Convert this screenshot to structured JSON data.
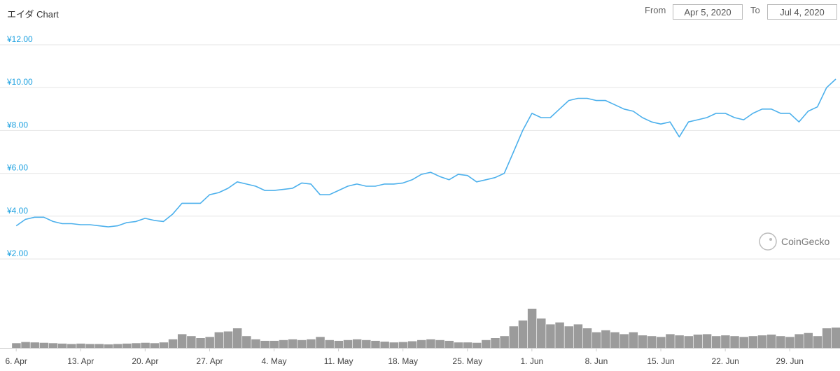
{
  "header": {
    "title": "エイダ Chart",
    "from_label": "From",
    "from_value": "Apr 5, 2020",
    "to_label": "To",
    "to_value": "Jul 4, 2020"
  },
  "watermark": {
    "text": "CoinGecko",
    "icon": "coingecko-gecko-icon"
  },
  "colors": {
    "price_line": "#4cb0ec",
    "axis_label": "#1ea1e0",
    "volume": "#8a8a8a",
    "grid": "#e6e6e6"
  },
  "chart_data": [
    {
      "type": "line",
      "title": "エイダ Chart",
      "yunit": "¥",
      "y_ticks": [
        "¥2.00",
        "¥4.00",
        "¥6.00",
        "¥8.00",
        "¥10.00",
        "¥12.00"
      ],
      "ylim": [
        2,
        12
      ],
      "x_ticks": [
        "6. Apr",
        "13. Apr",
        "20. Apr",
        "27. Apr",
        "4. May",
        "11. May",
        "18. May",
        "25. May",
        "1. Jun",
        "8. Jun",
        "15. Jun",
        "22. Jun",
        "29. Jun"
      ],
      "x_range": [
        "2020-04-05",
        "2020-07-04"
      ],
      "grid": true,
      "series": [
        {
          "x": [
            "2020-04-06",
            "2020-04-07",
            "2020-04-08",
            "2020-04-09",
            "2020-04-10",
            "2020-04-11",
            "2020-04-12",
            "2020-04-13",
            "2020-04-14",
            "2020-04-15",
            "2020-04-16",
            "2020-04-17",
            "2020-04-18",
            "2020-04-19",
            "2020-04-20",
            "2020-04-21",
            "2020-04-22",
            "2020-04-23",
            "2020-04-24",
            "2020-04-25",
            "2020-04-26",
            "2020-04-27",
            "2020-04-28",
            "2020-04-29",
            "2020-04-30",
            "2020-05-01",
            "2020-05-02",
            "2020-05-03",
            "2020-05-04",
            "2020-05-05",
            "2020-05-06",
            "2020-05-07",
            "2020-05-08",
            "2020-05-09",
            "2020-05-10",
            "2020-05-11",
            "2020-05-12",
            "2020-05-13",
            "2020-05-14",
            "2020-05-15",
            "2020-05-16",
            "2020-05-17",
            "2020-05-18",
            "2020-05-19",
            "2020-05-20",
            "2020-05-21",
            "2020-05-22",
            "2020-05-23",
            "2020-05-24",
            "2020-05-25",
            "2020-05-26",
            "2020-05-27",
            "2020-05-28",
            "2020-05-29",
            "2020-05-30",
            "2020-05-31",
            "2020-06-01",
            "2020-06-02",
            "2020-06-03",
            "2020-06-04",
            "2020-06-05",
            "2020-06-06",
            "2020-06-07",
            "2020-06-08",
            "2020-06-09",
            "2020-06-10",
            "2020-06-11",
            "2020-06-12",
            "2020-06-13",
            "2020-06-14",
            "2020-06-15",
            "2020-06-16",
            "2020-06-17",
            "2020-06-18",
            "2020-06-19",
            "2020-06-20",
            "2020-06-21",
            "2020-06-22",
            "2020-06-23",
            "2020-06-24",
            "2020-06-25",
            "2020-06-26",
            "2020-06-27",
            "2020-06-28",
            "2020-06-29",
            "2020-06-30",
            "2020-07-01",
            "2020-07-02",
            "2020-07-03",
            "2020-07-04"
          ],
          "values": [
            3.55,
            3.85,
            3.95,
            3.95,
            3.75,
            3.65,
            3.65,
            3.6,
            3.6,
            3.55,
            3.5,
            3.55,
            3.7,
            3.75,
            3.9,
            3.8,
            3.75,
            4.1,
            4.6,
            4.6,
            4.6,
            5.0,
            5.1,
            5.3,
            5.6,
            5.5,
            5.4,
            5.2,
            5.2,
            5.25,
            5.3,
            5.55,
            5.5,
            5.0,
            5.0,
            5.2,
            5.4,
            5.5,
            5.4,
            5.4,
            5.5,
            5.5,
            5.55,
            5.7,
            5.95,
            6.05,
            5.85,
            5.7,
            5.95,
            5.9,
            5.6,
            5.7,
            5.8,
            6.0,
            7.0,
            8.0,
            8.8,
            8.6,
            8.6,
            9.0,
            9.4,
            9.5,
            9.5,
            9.4,
            9.4,
            9.2,
            9.0,
            8.9,
            8.6,
            8.4,
            8.3,
            8.4,
            7.7,
            8.4,
            8.5,
            8.6,
            8.8,
            8.8,
            8.6,
            8.5,
            8.8,
            9.0,
            9.0,
            8.8,
            8.8,
            8.4,
            8.9,
            9.1,
            10.0,
            10.4
          ]
        }
      ]
    },
    {
      "type": "bar",
      "title": "",
      "x_range": [
        "2020-04-05",
        "2020-07-04"
      ],
      "volume_relative": [
        0.12,
        0.15,
        0.14,
        0.13,
        0.12,
        0.11,
        0.1,
        0.11,
        0.1,
        0.1,
        0.09,
        0.1,
        0.11,
        0.12,
        0.13,
        0.12,
        0.14,
        0.22,
        0.35,
        0.3,
        0.25,
        0.28,
        0.4,
        0.42,
        0.5,
        0.3,
        0.22,
        0.18,
        0.18,
        0.2,
        0.22,
        0.2,
        0.22,
        0.28,
        0.2,
        0.18,
        0.2,
        0.22,
        0.2,
        0.18,
        0.16,
        0.14,
        0.15,
        0.17,
        0.2,
        0.22,
        0.2,
        0.18,
        0.14,
        0.14,
        0.13,
        0.2,
        0.25,
        0.3,
        0.55,
        0.7,
        1.0,
        0.75,
        0.6,
        0.65,
        0.55,
        0.6,
        0.5,
        0.4,
        0.45,
        0.4,
        0.35,
        0.4,
        0.32,
        0.3,
        0.28,
        0.35,
        0.32,
        0.3,
        0.34,
        0.35,
        0.3,
        0.32,
        0.3,
        0.28,
        0.3,
        0.32,
        0.34,
        0.3,
        0.28,
        0.35,
        0.38,
        0.3,
        0.5,
        0.52
      ]
    }
  ]
}
